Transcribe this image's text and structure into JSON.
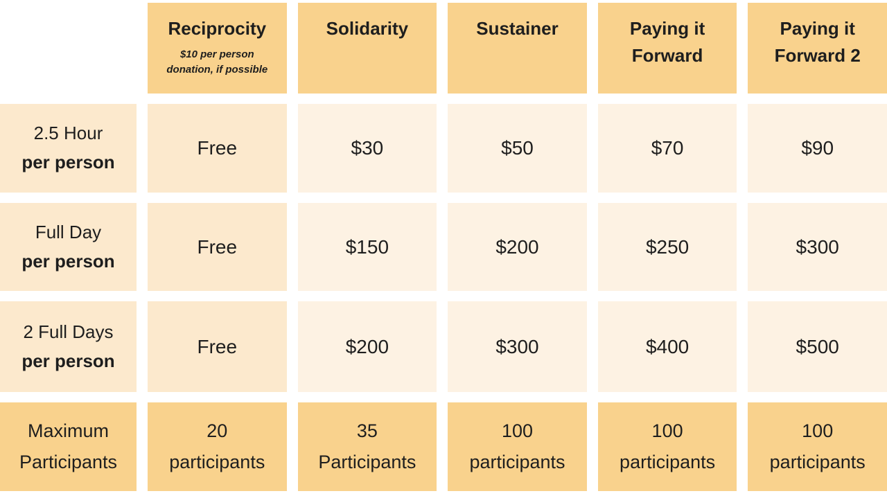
{
  "colors": {
    "header_fill": "#F9D28D",
    "accent_fill": "#FCE9CD",
    "value_fill": "#FDF2E3",
    "text": "#1E1E1E",
    "background": "#FFFFFF"
  },
  "table": {
    "columns": [
      {
        "title": "",
        "subtitle": ""
      },
      {
        "title": "Reciprocity",
        "subtitle": "$10 per person\ndonation, if possible"
      },
      {
        "title": "Solidarity",
        "subtitle": ""
      },
      {
        "title": "Sustainer",
        "subtitle": ""
      },
      {
        "title": "Paying it Forward",
        "subtitle": ""
      },
      {
        "title": "Paying it Forward 2",
        "subtitle": ""
      }
    ],
    "rows": [
      {
        "label_top": "2.5 Hour",
        "label_bottom": "per person",
        "cells": [
          "Free",
          "$30",
          "$50",
          "$70",
          "$90"
        ]
      },
      {
        "label_top": "Full Day",
        "label_bottom": "per person",
        "cells": [
          "Free",
          "$150",
          "$200",
          "$250",
          "$300"
        ]
      },
      {
        "label_top": "2 Full Days",
        "label_bottom": "per person",
        "cells": [
          "Free",
          "$200",
          "$300",
          "$400",
          "$500"
        ]
      }
    ],
    "footer": {
      "label": "Maximum\nParticipants",
      "cells": [
        "20\nparticipants",
        "35\nParticipants",
        "100\nparticipants",
        "100\nparticipants",
        "100\nparticipants"
      ]
    }
  },
  "chart_data": {
    "type": "table",
    "title": "Pricing tiers by session length and tier",
    "columns": [
      "",
      "Reciprocity",
      "Solidarity",
      "Sustainer",
      "Paying it Forward",
      "Paying it Forward 2"
    ],
    "column_notes": {
      "Reciprocity": "$10 per person donation, if possible"
    },
    "rows": [
      [
        "2.5 Hour per person",
        "Free",
        "$30",
        "$50",
        "$70",
        "$90"
      ],
      [
        "Full Day per person",
        "Free",
        "$150",
        "$200",
        "$250",
        "$300"
      ],
      [
        "2 Full Days per person",
        "Free",
        "$200",
        "$300",
        "$400",
        "$500"
      ],
      [
        "Maximum Participants",
        "20 participants",
        "35 Participants",
        "100 participants",
        "100 participants",
        "100 participants"
      ]
    ]
  }
}
